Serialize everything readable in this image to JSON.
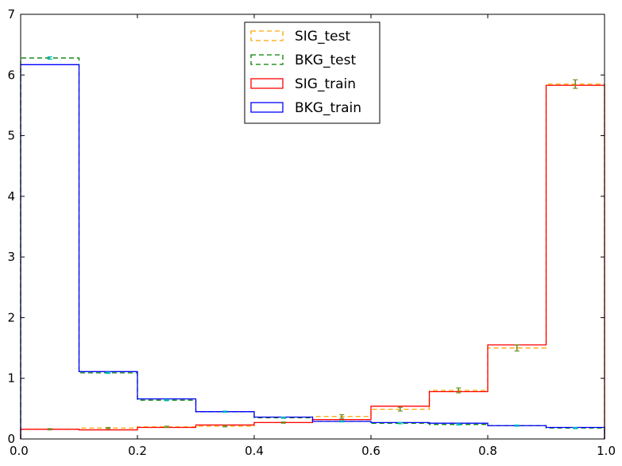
{
  "chart_data": {
    "type": "histogram-step",
    "xlim": [
      0,
      1
    ],
    "ylim": [
      0,
      7
    ],
    "x_ticks": [
      "0.0",
      "0.2",
      "0.4",
      "0.6",
      "0.8",
      "1.0"
    ],
    "y_ticks": [
      "0",
      "1",
      "2",
      "3",
      "4",
      "5",
      "6",
      "7"
    ],
    "grid": false,
    "legend_position": "top-center",
    "bin_edges": [
      0.0,
      0.1,
      0.2,
      0.3,
      0.4,
      0.5,
      0.6,
      0.7,
      0.8,
      0.9,
      1.0
    ],
    "series": [
      {
        "name": "SIG_test",
        "style": "dashed",
        "color": "#FFA500",
        "error_bar_color": "#6B8E23",
        "values": [
          0.16,
          0.18,
          0.2,
          0.21,
          0.27,
          0.37,
          0.49,
          0.8,
          1.5,
          5.85
        ],
        "errors": [
          0.01,
          0.01,
          0.01,
          0.01,
          0.01,
          0.03,
          0.03,
          0.04,
          0.05,
          0.07
        ]
      },
      {
        "name": "BKG_test",
        "style": "dashed",
        "color": "#008000",
        "error_bar_color": "#00BFBF",
        "values": [
          6.28,
          1.09,
          0.64,
          0.45,
          0.35,
          0.29,
          0.26,
          0.24,
          0.22,
          0.18
        ],
        "errors": [
          0.02,
          0.01,
          0.01,
          0.01,
          0.01,
          0.01,
          0.01,
          0.01,
          0.01,
          0.01
        ]
      },
      {
        "name": "SIG_train",
        "style": "solid",
        "color": "#FF0000",
        "values": [
          0.16,
          0.15,
          0.19,
          0.23,
          0.27,
          0.32,
          0.54,
          0.78,
          1.55,
          5.83
        ]
      },
      {
        "name": "BKG_train",
        "style": "solid",
        "color": "#0000FF",
        "values": [
          6.17,
          1.11,
          0.66,
          0.45,
          0.36,
          0.29,
          0.27,
          0.26,
          0.22,
          0.19
        ]
      }
    ]
  }
}
